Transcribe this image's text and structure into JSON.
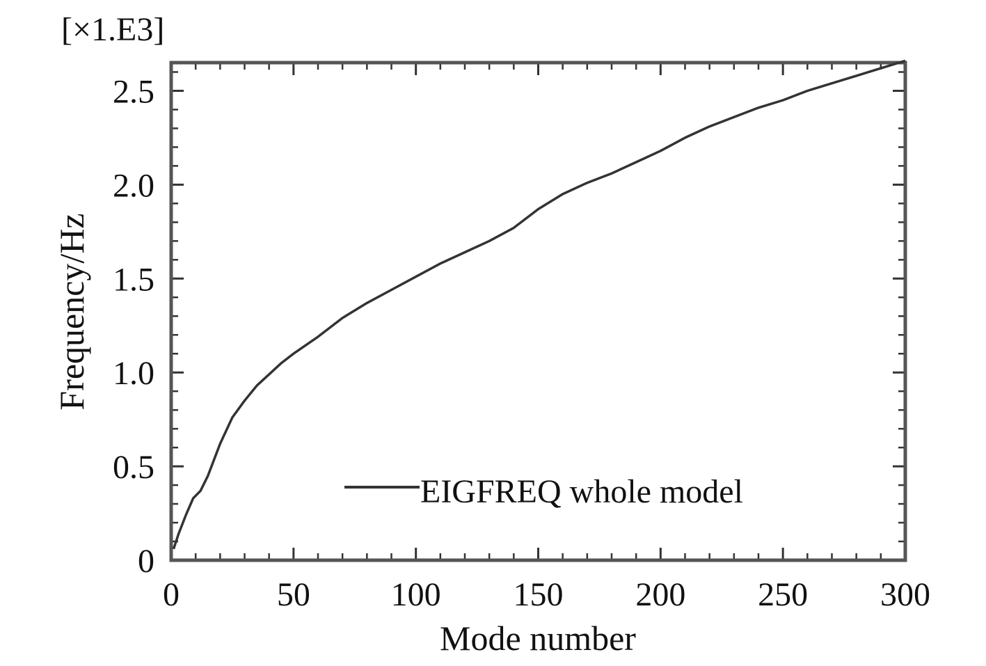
{
  "chart_data": {
    "type": "line",
    "title": "",
    "xlabel": "Mode number",
    "ylabel": "Frequency/Hz",
    "y_multiplier_label": "[×1.E3]",
    "xlim": [
      0,
      300
    ],
    "ylim": [
      0,
      2.65
    ],
    "x_ticks": [
      0,
      50,
      100,
      150,
      200,
      250,
      300
    ],
    "x_tick_labels": [
      "0",
      "50",
      "100",
      "150",
      "200",
      "250",
      "300"
    ],
    "y_ticks": [
      0,
      0.5,
      1.0,
      1.5,
      2.0,
      2.5
    ],
    "y_tick_labels": [
      "0",
      "0.5",
      "1.0",
      "1.5",
      "2.0",
      "2.5"
    ],
    "grid": false,
    "legend_position": "bottom-right",
    "line_color": "#333333",
    "series": [
      {
        "name": "EIGFREQ whole model",
        "x": [
          1,
          3,
          6,
          9,
          12,
          15,
          20,
          25,
          30,
          35,
          40,
          45,
          50,
          60,
          70,
          80,
          90,
          100,
          110,
          120,
          130,
          140,
          150,
          160,
          170,
          180,
          190,
          200,
          210,
          220,
          230,
          240,
          250,
          260,
          270,
          280,
          290,
          300
        ],
        "values": [
          0.06,
          0.14,
          0.24,
          0.33,
          0.37,
          0.45,
          0.62,
          0.76,
          0.85,
          0.93,
          0.99,
          1.05,
          1.1,
          1.19,
          1.29,
          1.37,
          1.44,
          1.51,
          1.58,
          1.64,
          1.7,
          1.77,
          1.87,
          1.95,
          2.01,
          2.06,
          2.12,
          2.18,
          2.25,
          2.31,
          2.36,
          2.41,
          2.45,
          2.5,
          2.54,
          2.58,
          2.62,
          2.66
        ]
      }
    ]
  }
}
